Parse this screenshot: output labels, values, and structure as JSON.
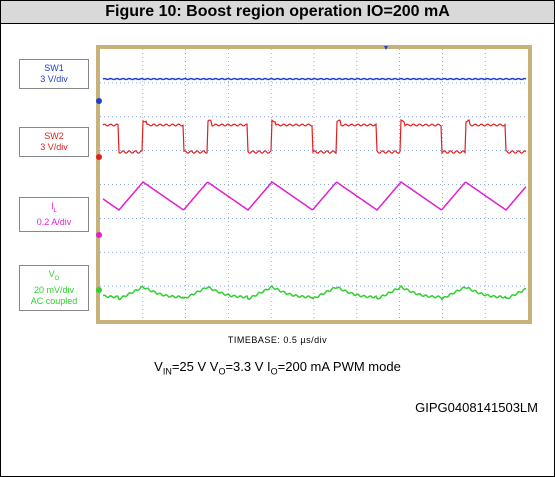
{
  "title": "Figure 10: Boost region operation IO=200 mA",
  "channels": [
    {
      "name": "SW1",
      "scale": "3 V/div"
    },
    {
      "name": "SW2",
      "scale": "3 V/div"
    },
    {
      "name": "I",
      "subscript": "L",
      "scale": "0.2 A/div"
    },
    {
      "name": "V",
      "subscript": "O",
      "scale": "20 mV/div",
      "note": "AC coupled"
    }
  ],
  "timebase": "TIMEBASE: 0.5 µs/div",
  "caption": [
    {
      "text": "V"
    },
    {
      "sub": "IN"
    },
    {
      "text": "=25 V V"
    },
    {
      "sub": "O"
    },
    {
      "text": "=3.3 V I"
    },
    {
      "sub": "O"
    },
    {
      "text": "=200 mA PWM mode"
    }
  ],
  "code": "GIPG0408141503LM"
}
